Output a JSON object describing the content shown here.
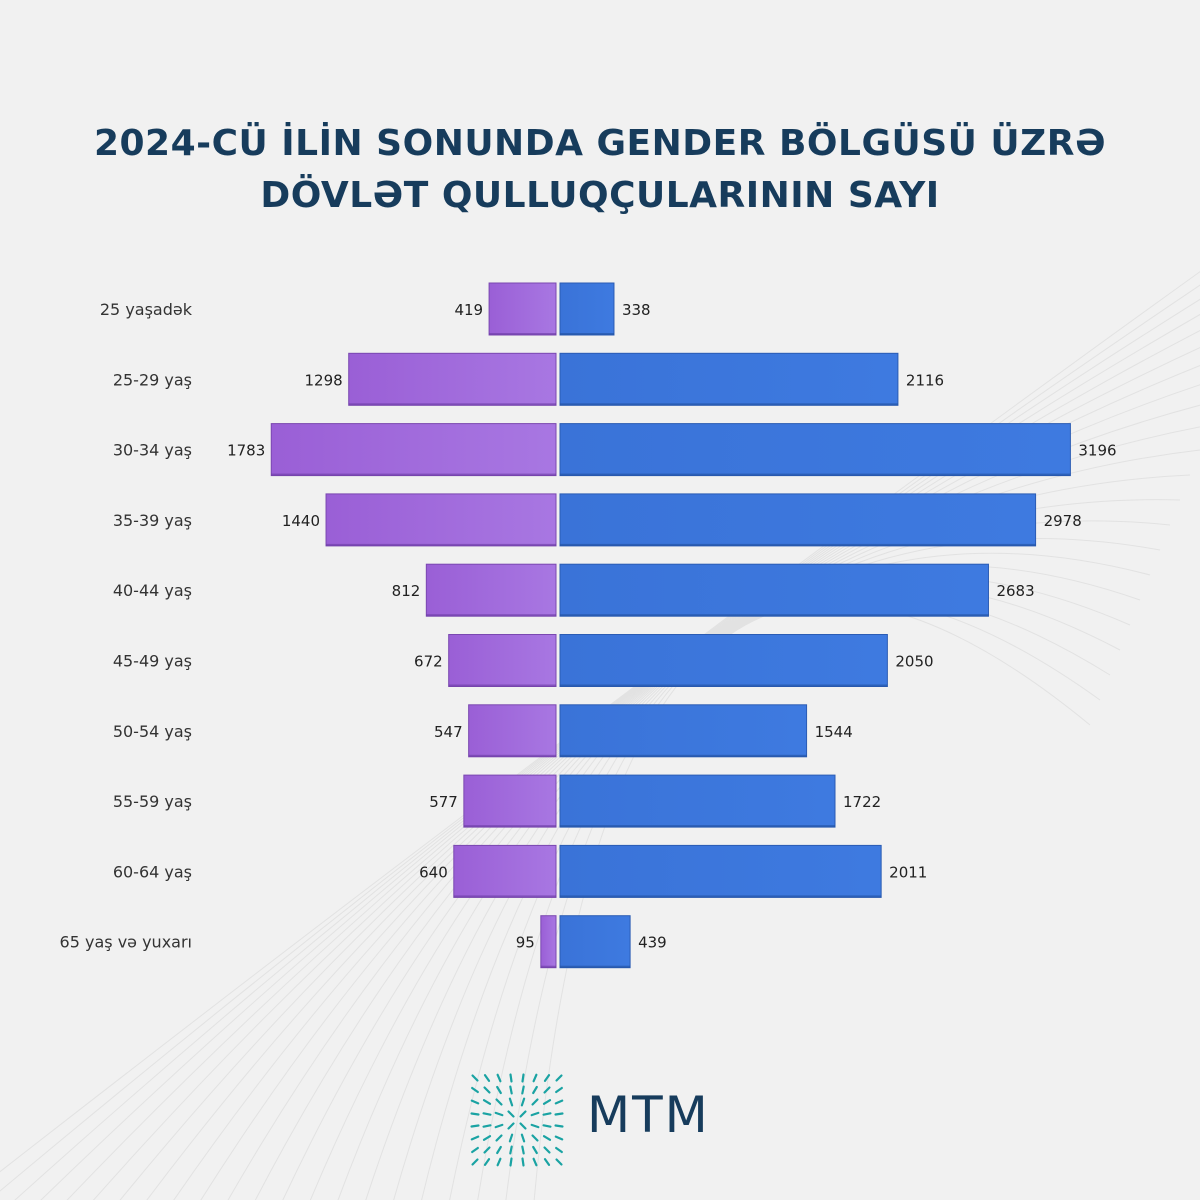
{
  "title": {
    "line1": "2024-CÜ İLİN SONUNDA GENDER BÖLGÜSÜ ÜZRƏ",
    "line2": "DÖVLƏT QULLUQÇULARININ SAYI"
  },
  "colors": {
    "female": "#9d68d8",
    "male": "#3c78dc",
    "title": "#173c5c",
    "logo": "#1aa3a3"
  },
  "chart_data": {
    "type": "bar",
    "orientation": "horizontal-population-pyramid",
    "title": "2024-CÜ İLİN SONUNDA GENDER BÖLGÜSÜ ÜZRƏ DÖVLƏT QULLUQÇULARININ SAYI",
    "categories": [
      "25 yaşadək",
      "25-29 yaş",
      "30-34 yaş",
      "35-39 yaş",
      "40-44 yaş",
      "45-49 yaş",
      "50-54 yaş",
      "55-59 yaş",
      "60-64 yaş",
      "65 yaş və yuxarı"
    ],
    "series": [
      {
        "values": [
          419,
          1298,
          1783,
          1440,
          812,
          672,
          547,
          577,
          640,
          95
        ],
        "color": "#9d68d8",
        "side": "left"
      },
      {
        "values": [
          338,
          2116,
          3196,
          2978,
          2683,
          2050,
          1544,
          1722,
          2011,
          439
        ],
        "color": "#3c78dc",
        "side": "right"
      }
    ],
    "xlabel": "",
    "ylabel": "",
    "grid": false,
    "legend": "none"
  },
  "logo": {
    "text": "MTM",
    "icon": "starburst-grid-icon"
  }
}
